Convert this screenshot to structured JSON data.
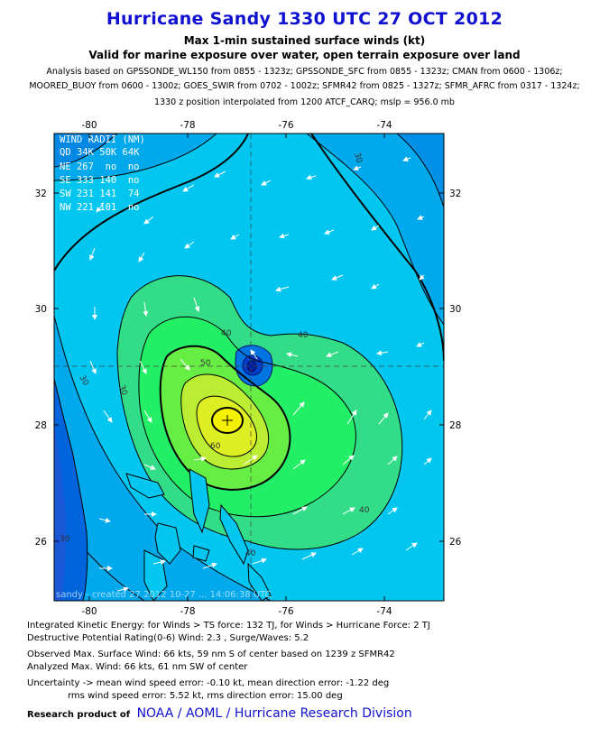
{
  "header": {
    "title": "Hurricane Sandy 1330 UTC 27 OCT 2012",
    "subtitle1": "Max 1-min sustained surface winds (kt)",
    "subtitle2": "Valid for marine exposure over water, open terrain exposure over land",
    "analysis_line1": "Analysis based on GPSSONDE_WL150 from 0855 - 1323z; GPSSONDE_SFC from 0855 - 1323z; CMAN from 0600 - 1306z;",
    "analysis_line2": "MOORED_BUOY from 0600 - 1300z; GOES_SWIR from 0702 - 1002z; SFMR42 from 0825 - 1327z; SFMR_AFRC from 0317 - 1324z;",
    "analysis_line3": "1330 z position interpolated from 1200 ATCF_CARQ; mslp = 956.0 mb"
  },
  "map": {
    "lon_ticks_top": [
      "-80",
      "-78",
      "-76",
      "-74"
    ],
    "lon_ticks_bottom": [
      "-80",
      "-78",
      "-76",
      "-74"
    ],
    "lat_ticks_left": [
      "32",
      "30",
      "28",
      "26"
    ],
    "lat_ticks_right": [
      "32",
      "30",
      "28",
      "26"
    ],
    "contour_labels": [
      "30",
      "40",
      "50",
      "60",
      "40",
      "40",
      "40",
      "30",
      "30",
      "30"
    ],
    "watermark": "sandy - created 27 2012 10-27 ... 14:06:38 UTC",
    "storm_center": {
      "lon": -77.3,
      "lat": 28.2
    },
    "colors": {
      "background": "#00c8f0",
      "coast": "#000000",
      "land_low": "#0050e0"
    }
  },
  "wind_radii": {
    "title": "WIND RADII (NM)",
    "header": "QD 34K 50K 64K",
    "rows": [
      "NE 267  no  no",
      "SE 333 140  no",
      "SW 231 141  74",
      "NW 221 101  no"
    ]
  },
  "footer": {
    "ike": "Integrated Kinetic Energy: for Winds > TS force: 132 TJ, for Winds > Hurricane Force: 2 TJ",
    "dpr": "Destructive Potential Rating(0-6)  Wind: 2.3 , Surge/Waves: 5.2",
    "observed": "Observed Max. Surface Wind: 66 kts, 59 nm S of center based on 1239 z SFMR42",
    "analyzed": "Analyzed Max. Wind: 66 kts, 61 nm  SW of center",
    "uncertainty1": "Uncertainty -> mean wind speed error:  -0.10 kt, mean direction error:  -1.22 deg",
    "uncertainty2": "rms wind speed error: 5.52 kt, rms direction error: 15.00 deg",
    "credit_label": "Research product of",
    "credit_org": "NOAA  /  AOML  /  Hurricane Research Division"
  }
}
